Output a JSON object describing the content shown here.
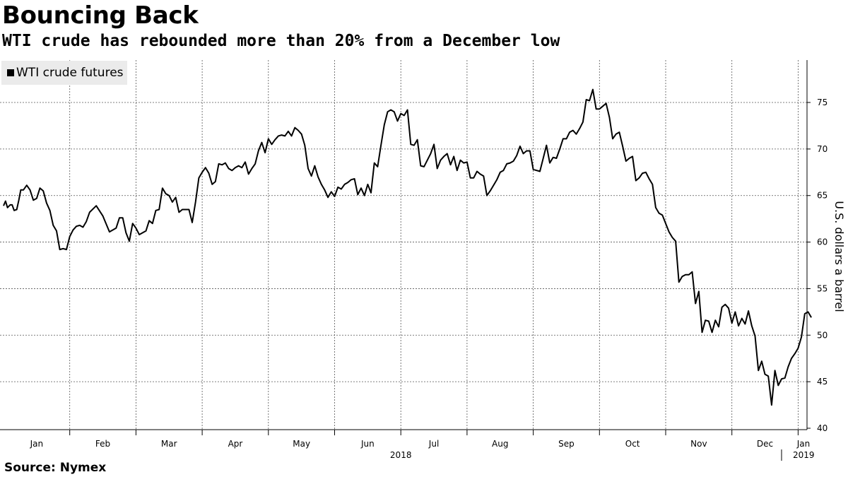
{
  "title": "Bouncing Back",
  "subtitle": "WTI crude has rebounded more than 20% from a December low",
  "source": "Source: Nymex",
  "colors": {
    "line": "#000000",
    "grid": "#555555",
    "legend_bg": "#ebebeb"
  },
  "chart_data": {
    "type": "line",
    "title": "Bouncing Back",
    "subtitle": "WTI crude has rebounded more than 20% from a December low",
    "ylabel": "U.S. dollars a barrel",
    "ylim": [
      40,
      80
    ],
    "yticks": [
      40,
      45,
      50,
      55,
      60,
      65,
      70,
      75
    ],
    "xlim": [
      0,
      12.3
    ],
    "x_unit": "months from 2018-01-01",
    "month_labels": [
      "Jan",
      "Feb",
      "Mar",
      "Apr",
      "May",
      "Jun",
      "Jul",
      "Aug",
      "Sep",
      "Oct",
      "Nov",
      "Dec",
      "Jan"
    ],
    "year_labels": [
      "2018",
      "2019"
    ],
    "grid": true,
    "legend_position": "top-left",
    "series": [
      {
        "name": "WTI crude futures",
        "x": [
          0,
          0.03,
          0.06,
          0.1,
          0.13,
          0.16,
          0.2,
          0.23,
          0.26,
          0.3,
          0.35,
          0.4,
          0.45,
          0.5,
          0.55,
          0.6,
          0.65,
          0.7,
          0.75,
          0.8,
          0.85,
          0.9,
          0.95,
          1.0,
          1.05,
          1.1,
          1.15,
          1.2,
          1.25,
          1.3,
          1.4,
          1.5,
          1.6,
          1.7,
          1.75,
          1.8,
          1.85,
          1.9,
          1.95,
          2.0,
          2.05,
          2.1,
          2.15,
          2.2,
          2.25,
          2.3,
          2.35,
          2.4,
          2.45,
          2.5,
          2.55,
          2.6,
          2.65,
          2.7,
          2.75,
          2.8,
          2.85,
          2.9,
          2.95,
          3.0,
          3.05,
          3.1,
          3.15,
          3.2,
          3.25,
          3.3,
          3.35,
          3.4,
          3.45,
          3.5,
          3.55,
          3.6,
          3.65,
          3.7,
          3.75,
          3.8,
          3.85,
          3.9,
          3.95,
          4.0,
          4.05,
          4.1,
          4.15,
          4.2,
          4.25,
          4.3,
          4.35,
          4.4,
          4.45,
          4.5,
          4.55,
          4.6,
          4.65,
          4.7,
          4.75,
          4.8,
          4.85,
          4.9,
          4.95,
          5.0,
          5.05,
          5.1,
          5.15,
          5.2,
          5.25,
          5.3,
          5.35,
          5.4,
          5.45,
          5.5,
          5.55,
          5.6,
          5.65,
          5.7,
          5.75,
          5.8,
          5.85,
          5.9,
          5.95,
          6.0,
          6.05,
          6.1,
          6.15,
          6.2,
          6.25,
          6.3,
          6.35,
          6.4,
          6.45,
          6.5,
          6.55,
          6.6,
          6.65,
          6.7,
          6.75,
          6.8,
          6.85,
          6.9,
          6.95,
          7.0,
          7.05,
          7.1,
          7.15,
          7.2,
          7.25,
          7.3,
          7.35,
          7.4,
          7.45,
          7.5,
          7.55,
          7.6,
          7.65,
          7.7,
          7.75,
          7.8,
          7.85,
          7.9,
          7.95,
          8.0,
          8.05,
          8.1,
          8.15,
          8.2,
          8.25,
          8.3,
          8.35,
          8.4,
          8.45,
          8.5,
          8.55,
          8.6,
          8.65,
          8.7,
          8.75,
          8.8,
          8.85,
          8.9,
          8.95,
          9.0,
          9.05,
          9.1,
          9.15,
          9.2,
          9.25,
          9.3,
          9.35,
          9.4,
          9.45,
          9.5,
          9.55,
          9.6,
          9.65,
          9.7,
          9.75,
          9.8,
          9.85,
          9.9,
          9.95,
          10.0,
          10.05,
          10.1,
          10.15,
          10.2,
          10.25,
          10.3,
          10.35,
          10.4,
          10.45,
          10.5,
          10.55,
          10.6,
          10.65,
          10.7,
          10.75,
          10.8,
          10.85,
          10.9,
          10.95,
          11.0,
          11.05,
          11.1,
          11.15,
          11.2,
          11.25,
          11.3,
          11.35,
          11.4,
          11.45,
          11.5,
          11.55,
          11.6,
          11.65,
          11.7,
          11.75,
          11.8,
          11.85,
          11.9,
          11.95,
          12.0,
          12.05,
          12.1,
          12.15,
          12.2
        ],
        "y": [
          63.9,
          64.4,
          63.7,
          64.0,
          64.0,
          63.4,
          63.5,
          64.5,
          65.6,
          65.6,
          66.1,
          65.6,
          64.5,
          64.7,
          65.8,
          65.5,
          64.2,
          63.4,
          61.8,
          61.2,
          59.2,
          59.3,
          59.2,
          60.6,
          61.3,
          61.7,
          61.8,
          61.6,
          62.2,
          63.2,
          63.9,
          62.8,
          61.1,
          61.5,
          62.6,
          62.6,
          61.0,
          60.1,
          62.0,
          61.5,
          60.8,
          61.0,
          61.2,
          62.3,
          62.0,
          63.4,
          63.5,
          65.8,
          65.2,
          65.0,
          64.3,
          64.8,
          63.2,
          63.5,
          63.5,
          63.5,
          62.1,
          64.3,
          66.9,
          67.5,
          68.0,
          67.4,
          66.2,
          66.5,
          68.4,
          68.3,
          68.5,
          67.9,
          67.7,
          68.0,
          68.2,
          68.0,
          68.6,
          67.3,
          67.9,
          68.4,
          69.8,
          70.7,
          69.6,
          71.1,
          70.5,
          71.0,
          71.4,
          71.5,
          71.4,
          71.9,
          71.4,
          72.3,
          72.0,
          71.6,
          70.4,
          67.9,
          67.1,
          68.2,
          67.0,
          66.2,
          65.6,
          64.8,
          65.4,
          64.9,
          65.9,
          65.7,
          66.2,
          66.4,
          66.7,
          66.8,
          65.1,
          65.8,
          65.0,
          66.2,
          65.3,
          68.5,
          68.1,
          70.4,
          72.6,
          74.0,
          74.2,
          74.0,
          73.0,
          73.8,
          73.6,
          74.2,
          70.5,
          70.4,
          71.0,
          68.2,
          68.1,
          68.8,
          69.5,
          70.5,
          67.9,
          68.8,
          69.2,
          69.5,
          68.3,
          69.2,
          67.7,
          68.8,
          68.5,
          68.6,
          66.9,
          66.9,
          67.6,
          67.3,
          67.1,
          65.0,
          65.5,
          66.1,
          66.7,
          67.5,
          67.7,
          68.4,
          68.5,
          68.7,
          69.3,
          70.3,
          69.5,
          69.8,
          69.8,
          67.8,
          67.7,
          67.6,
          69.0,
          70.4,
          68.5,
          69.1,
          69.0,
          70.0,
          71.1,
          71.1,
          71.8,
          72.0,
          71.6,
          72.2,
          72.9,
          75.3,
          75.2,
          76.4,
          74.3,
          74.3,
          74.6,
          74.9,
          73.4,
          71.1,
          71.6,
          71.8,
          70.3,
          68.7,
          69.0,
          69.2,
          66.6,
          66.9,
          67.4,
          67.5,
          66.8,
          66.2,
          63.7,
          63.1,
          62.9,
          62.0,
          61.1,
          60.5,
          60.1,
          55.7,
          56.3,
          56.5,
          56.5,
          56.8,
          53.4,
          54.7,
          50.3,
          51.6,
          51.5,
          50.3,
          51.6,
          50.9,
          53.0,
          53.3,
          52.9,
          51.3,
          52.5,
          51.0,
          51.8,
          51.2,
          52.6,
          51.0,
          49.9,
          46.2,
          47.2,
          45.8,
          45.6,
          42.5,
          46.2,
          44.6,
          45.3,
          45.4,
          46.6,
          47.5,
          48.0,
          48.6,
          49.8,
          52.3,
          52.5,
          51.9
        ]
      }
    ]
  }
}
